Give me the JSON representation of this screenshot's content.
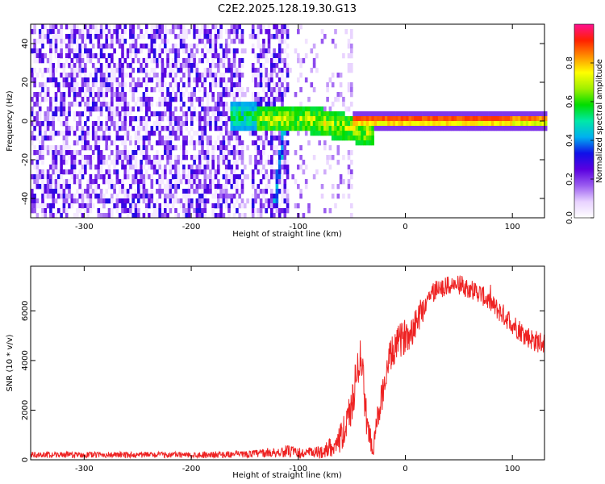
{
  "figure": {
    "title": "C2E2.2025.128.19.30.G13"
  },
  "chart_data": [
    {
      "type": "heatmap",
      "xlabel": "Height of straight line (km)",
      "ylabel": "Frequency (Hz)",
      "xlim": [
        -350,
        130
      ],
      "ylim": [
        -50,
        50
      ],
      "xticks": [
        -300,
        -200,
        -100,
        0,
        100
      ],
      "yticks": [
        -40,
        -20,
        0,
        20,
        40
      ],
      "grid": false,
      "colorbar": {
        "label": "Normalized spectral amplitude",
        "range": [
          0.0,
          1.0
        ],
        "ticks": [
          0.0,
          0.2,
          0.4,
          0.6,
          0.8
        ],
        "colormap": [
          "#ffffff",
          "#e8d2ff",
          "#9a5cf0",
          "#5a00e0",
          "#1010e8",
          "#00b0f0",
          "#00e8a8",
          "#00dd00",
          "#a0f000",
          "#ffff00",
          "#ff9000",
          "#ff2000",
          "#ff1090"
        ]
      },
      "features": {
        "noise_region_x": [
          -350,
          -110
        ],
        "sparse_region_x": [
          -110,
          -50
        ],
        "carrier_frequency_hz": 1.5,
        "carrier_start_x": -50,
        "carrier_peak_amplitude": 0.9,
        "tilted_streak": {
          "x": [
            -113,
            -123
          ],
          "y": [
            5,
            -40
          ]
        },
        "pre_carrier_wobble": {
          "x": [
            -90,
            -30
          ],
          "y_range": [
            -8,
            6
          ]
        }
      }
    },
    {
      "type": "line",
      "xlabel": "Height of straight line (km)",
      "ylabel": "SNR (10 * v/v)",
      "xlim": [
        -350,
        130
      ],
      "ylim": [
        0,
        7800
      ],
      "xticks": [
        -300,
        -200,
        -100,
        0,
        100
      ],
      "yticks": [
        0,
        2000,
        4000,
        6000
      ],
      "grid": false,
      "color": "#ee2222",
      "envelope": {
        "x": [
          -350,
          -200,
          -150,
          -120,
          -110,
          -100,
          -80,
          -70,
          -60,
          -55,
          -50,
          -45,
          -42,
          -40,
          -36,
          -32,
          -30,
          -28,
          -20,
          -15,
          -10,
          -5,
          0,
          5,
          10,
          15,
          20,
          25,
          30,
          40,
          50,
          60,
          70,
          80,
          90,
          100,
          110,
          120,
          130
        ],
        "y": [
          200,
          200,
          220,
          300,
          350,
          250,
          300,
          500,
          900,
          1400,
          2200,
          3500,
          4500,
          3500,
          1500,
          700,
          200,
          1200,
          3000,
          4000,
          4500,
          4800,
          5000,
          5200,
          5600,
          6000,
          6400,
          6700,
          6900,
          7000,
          7050,
          6900,
          6700,
          6300,
          5900,
          5500,
          5100,
          4800,
          4700
        ],
        "noise": [
          120,
          120,
          140,
          200,
          250,
          220,
          250,
          400,
          600,
          700,
          800,
          900,
          900,
          900,
          700,
          400,
          200,
          500,
          700,
          700,
          700,
          700,
          700,
          700,
          700,
          600,
          600,
          500,
          400,
          400,
          400,
          400,
          400,
          400,
          450,
          450,
          450,
          450,
          450
        ]
      }
    }
  ]
}
